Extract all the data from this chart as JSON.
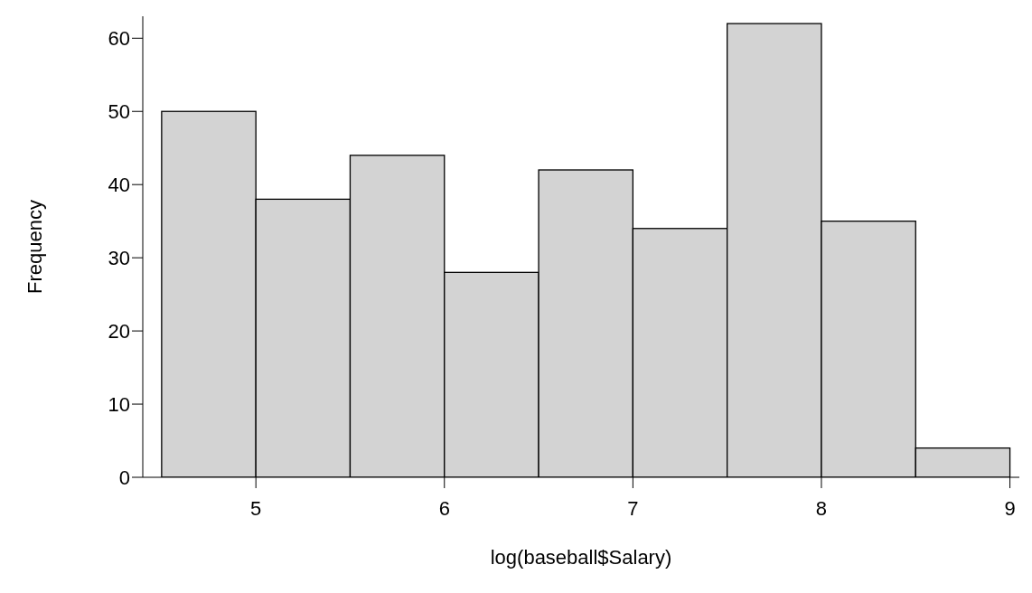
{
  "chart_data": {
    "type": "histogram",
    "xlabel": "log(baseball$Salary)",
    "ylabel": "Frequency",
    "bins": [
      4.5,
      5,
      5.5,
      6,
      6.5,
      7,
      7.5,
      8,
      8.5,
      9
    ],
    "values": [
      50,
      38,
      44,
      28,
      42,
      34,
      62,
      35,
      4
    ],
    "color": "#d3d3d3",
    "xlim": [
      4.4,
      9.05
    ],
    "xticks": [
      5,
      6,
      7,
      8,
      9
    ],
    "ylim": [
      0,
      63
    ],
    "yticks": [
      0,
      10,
      20,
      30,
      40,
      50,
      60
    ],
    "grid": false,
    "legend": false
  }
}
